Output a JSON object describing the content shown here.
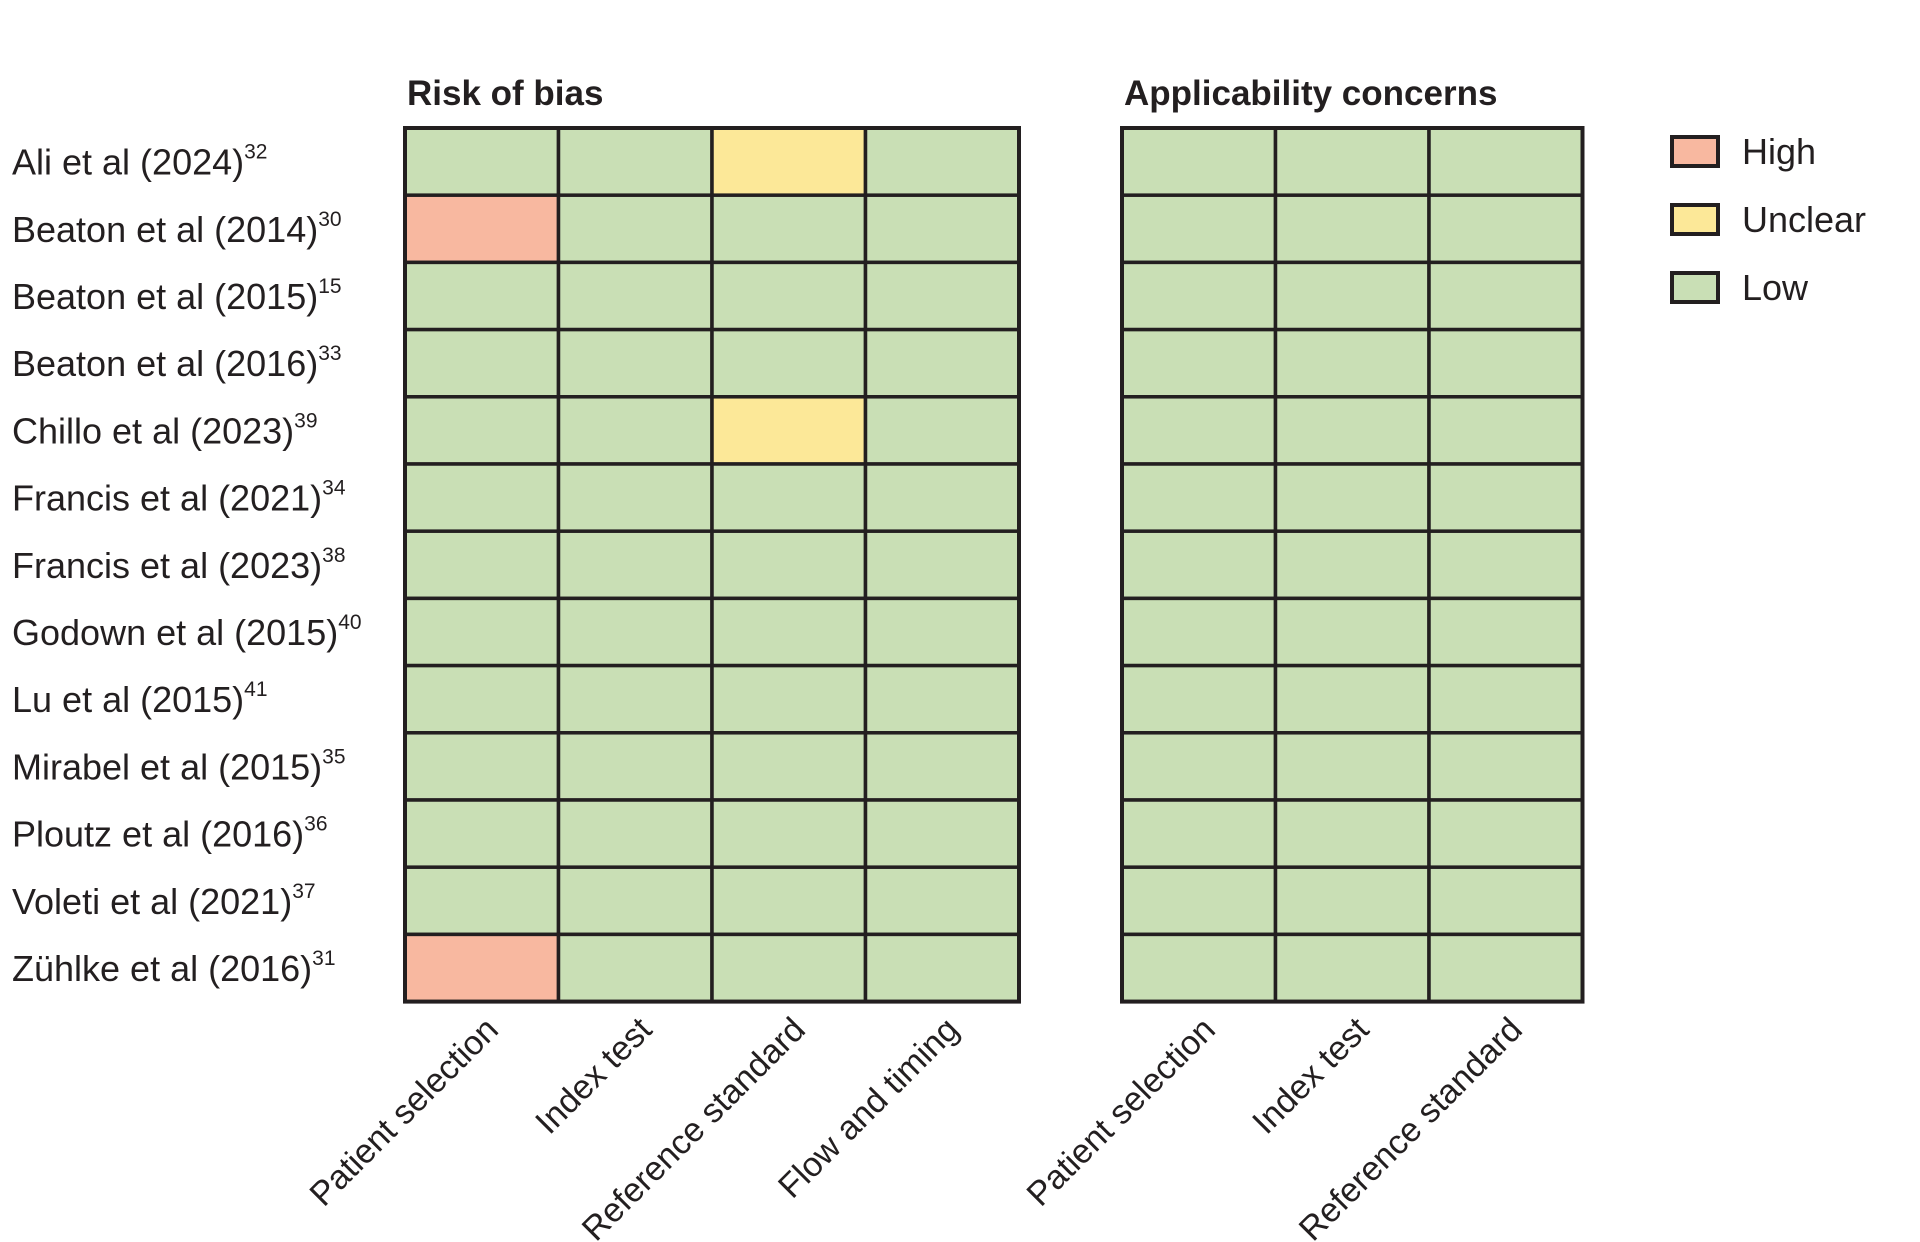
{
  "chart_data": {
    "type": "heatmap",
    "levels": [
      "High",
      "Unclear",
      "Low"
    ],
    "colors": {
      "High": "#f8b8a0",
      "Unclear": "#fce898",
      "Low": "#c9dfb5"
    },
    "studies": [
      {
        "name": "Ali et al (2024)",
        "ref": "32"
      },
      {
        "name": "Beaton et al (2014)",
        "ref": "30"
      },
      {
        "name": "Beaton et al (2015)",
        "ref": "15"
      },
      {
        "name": "Beaton et al (2016)",
        "ref": "33"
      },
      {
        "name": "Chillo et al (2023)",
        "ref": "39"
      },
      {
        "name": "Francis et al (2021)",
        "ref": "34"
      },
      {
        "name": "Francis et al (2023)",
        "ref": "38"
      },
      {
        "name": "Godown et al (2015)",
        "ref": "40"
      },
      {
        "name": "Lu et al (2015)",
        "ref": "41"
      },
      {
        "name": "Mirabel et al (2015)",
        "ref": "35"
      },
      {
        "name": "Ploutz et al (2016)",
        "ref": "36"
      },
      {
        "name": "Voleti et al (2021)",
        "ref": "37"
      },
      {
        "name": "Zühlke et al (2016)",
        "ref": "31"
      }
    ],
    "panels": [
      {
        "title": "Risk of bias",
        "columns": [
          "Patient selection",
          "Index test",
          "Reference standard",
          "Flow and timing"
        ],
        "values": [
          [
            "Low",
            "Low",
            "Unclear",
            "Low"
          ],
          [
            "High",
            "Low",
            "Low",
            "Low"
          ],
          [
            "Low",
            "Low",
            "Low",
            "Low"
          ],
          [
            "Low",
            "Low",
            "Low",
            "Low"
          ],
          [
            "Low",
            "Low",
            "Unclear",
            "Low"
          ],
          [
            "Low",
            "Low",
            "Low",
            "Low"
          ],
          [
            "Low",
            "Low",
            "Low",
            "Low"
          ],
          [
            "Low",
            "Low",
            "Low",
            "Low"
          ],
          [
            "Low",
            "Low",
            "Low",
            "Low"
          ],
          [
            "Low",
            "Low",
            "Low",
            "Low"
          ],
          [
            "Low",
            "Low",
            "Low",
            "Low"
          ],
          [
            "Low",
            "Low",
            "Low",
            "Low"
          ],
          [
            "High",
            "Low",
            "Low",
            "Low"
          ]
        ]
      },
      {
        "title": "Applicability concerns",
        "columns": [
          "Patient selection",
          "Index test",
          "Reference standard"
        ],
        "values": [
          [
            "Low",
            "Low",
            "Low"
          ],
          [
            "Low",
            "Low",
            "Low"
          ],
          [
            "Low",
            "Low",
            "Low"
          ],
          [
            "Low",
            "Low",
            "Low"
          ],
          [
            "Low",
            "Low",
            "Low"
          ],
          [
            "Low",
            "Low",
            "Low"
          ],
          [
            "Low",
            "Low",
            "Low"
          ],
          [
            "Low",
            "Low",
            "Low"
          ],
          [
            "Low",
            "Low",
            "Low"
          ],
          [
            "Low",
            "Low",
            "Low"
          ],
          [
            "Low",
            "Low",
            "Low"
          ],
          [
            "Low",
            "Low",
            "Low"
          ],
          [
            "Low",
            "Low",
            "Low"
          ]
        ]
      }
    ],
    "legend": {
      "position": "top-right",
      "entries": [
        "High",
        "Unclear",
        "Low"
      ]
    }
  }
}
